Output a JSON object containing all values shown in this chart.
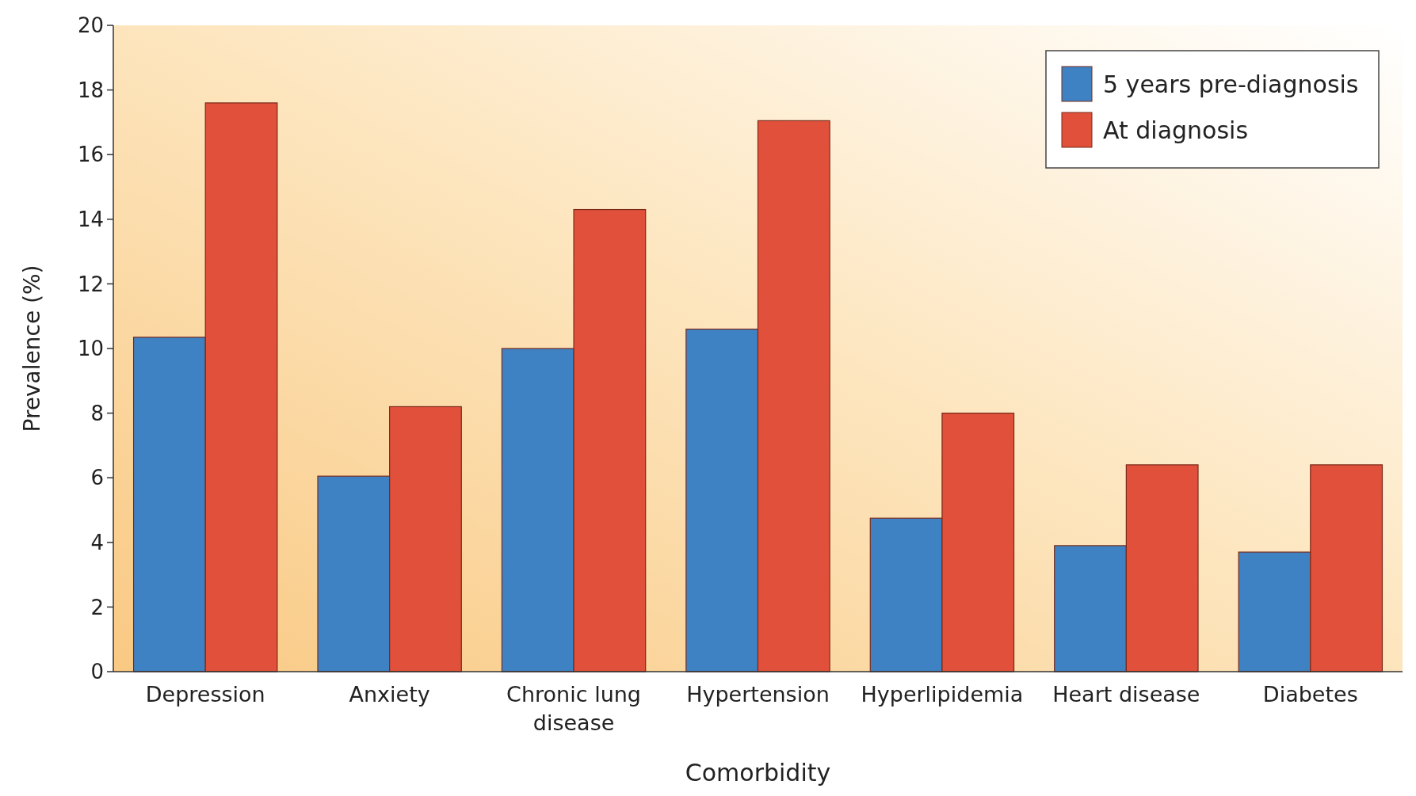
{
  "chart_data": {
    "type": "bar",
    "xlabel": "Comorbidity",
    "ylabel": "Prevalence (%)",
    "categories": [
      "Depression",
      "Anxiety",
      "Chronic lung disease",
      "Hypertension",
      "Hyperlipidemia",
      "Heart disease",
      "Diabetes"
    ],
    "series": [
      {
        "name": "5 years pre-diagnosis",
        "color": "#3f82c4",
        "values": [
          10.35,
          6.05,
          10.0,
          10.6,
          4.75,
          3.9,
          3.7
        ]
      },
      {
        "name": "At diagnosis",
        "color": "#e0503a",
        "values": [
          17.6,
          8.2,
          14.3,
          17.05,
          8.0,
          6.4,
          6.4
        ]
      }
    ],
    "ylim": [
      0,
      20
    ],
    "yticks": [
      0,
      2,
      4,
      6,
      8,
      10,
      12,
      14,
      16,
      18,
      20
    ],
    "grid": false,
    "legend": "top right"
  }
}
